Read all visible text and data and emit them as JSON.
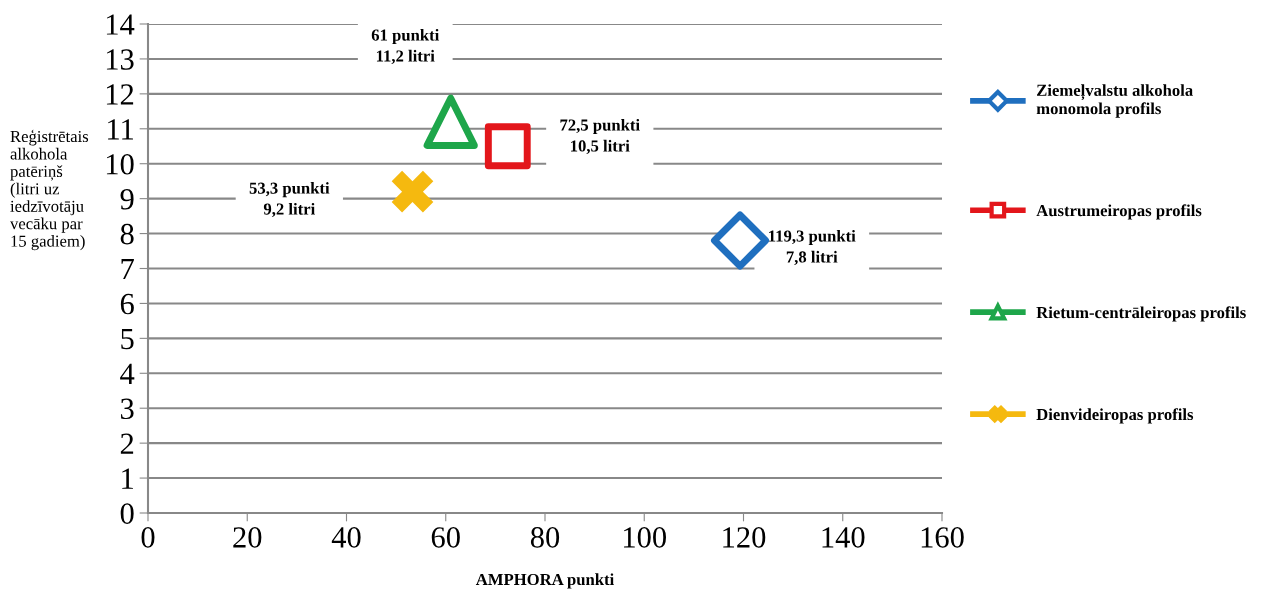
{
  "chart_data": {
    "type": "scatter",
    "xlabel": "AMPHORA punkti",
    "ylabel": "Reģistrētais\nalkohola\npatēriņš\n(litri uz\niedzīvotāju\nvecāku par\n15 gadiem)",
    "series": [
      {
        "name": "Ziemeļvalstu alkohola\nmonomola profils",
        "color": "#1f6fbf",
        "marker": "diamond",
        "x": [
          119.3
        ],
        "values": [
          7.8
        ]
      },
      {
        "name": "Austrumeiropas profils",
        "color": "#e3161b",
        "marker": "square",
        "x": [
          72.5
        ],
        "values": [
          10.5
        ]
      },
      {
        "name": "Rietum-centrāleiropas profils",
        "color": "#1ea64a",
        "marker": "triangle",
        "x": [
          61
        ],
        "values": [
          11.2
        ]
      },
      {
        "name": "Dienvideiropas profils",
        "color": "#f5b90f",
        "marker": "cross",
        "x": [
          53.3
        ],
        "values": [
          9.2
        ]
      }
    ],
    "annotations": [
      "61 punkti\n11,2 litri",
      "72,5 punkti\n10,5 litri",
      "53,3 punkti\n9,2 litri",
      "119,3 punkti\n7,8 litri"
    ],
    "xlim": [
      0,
      160
    ],
    "xticks": [
      0,
      20,
      40,
      60,
      80,
      100,
      120,
      140,
      160
    ],
    "ylim": [
      0,
      14
    ],
    "yticks": [
      0,
      1,
      2,
      3,
      4,
      5,
      6,
      7,
      8,
      9,
      10,
      11,
      12,
      13,
      14
    ],
    "grid": "y",
    "legend": "right"
  }
}
